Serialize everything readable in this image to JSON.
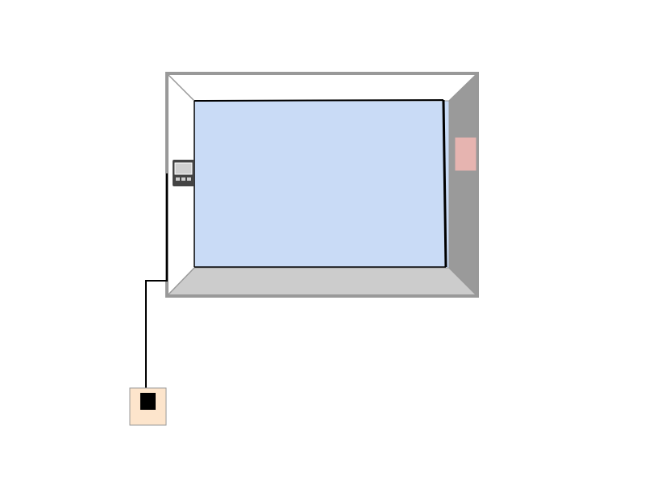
{
  "diagram": {
    "elements": [
      {
        "name": "room-enclosure",
        "kind": "3d-box-outline"
      },
      {
        "name": "back-wall-panel",
        "kind": "rectangle"
      },
      {
        "name": "right-wall-device",
        "kind": "rectangle"
      },
      {
        "name": "thermostat-controller",
        "kind": "device-with-display"
      },
      {
        "name": "floor-outlet-box",
        "kind": "junction-box"
      },
      {
        "name": "connecting-wire",
        "kind": "polyline"
      }
    ]
  },
  "colors": {
    "background": "#ffffff",
    "frame_border": "#999999",
    "wall_left": "#ffffff",
    "wall_top": "#ffffff",
    "wall_right": "#9a9a9a",
    "wall_bottom": "#cccccc",
    "panel_fill": "#c9dbf6",
    "panel_edge": "#000000",
    "right_device": "#e6b4b0",
    "thermostat_body": "#444444",
    "thermostat_screen": "#cfcfcf",
    "outlet_fill": "#fde5cc",
    "outlet_socket": "#000000",
    "wire": "#000000"
  }
}
